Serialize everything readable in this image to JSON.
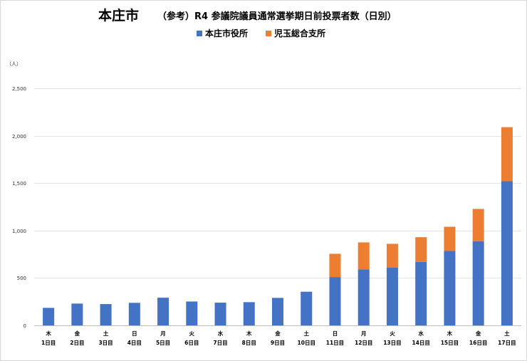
{
  "chart_data": {
    "type": "bar",
    "stacked": true,
    "title_main": "本庄市",
    "title": "（参考）R4 参議院議員通常選挙期日前投票者数（日別）",
    "unit_label": "（人）",
    "legend_position": "top-center",
    "grid": true,
    "ylim": [
      0,
      2500
    ],
    "yticks": [
      0,
      500,
      1000,
      1500,
      2000,
      2500
    ],
    "ytick_labels": [
      "0",
      "500",
      "1,000",
      "1,500",
      "2,000",
      "2,500"
    ],
    "weekdays": [
      "木",
      "金",
      "土",
      "日",
      "月",
      "火",
      "水",
      "木",
      "金",
      "土",
      "日",
      "月",
      "火",
      "水",
      "木",
      "金",
      "土"
    ],
    "categories": [
      "1日目",
      "2日目",
      "3日目",
      "4日目",
      "5日目",
      "6日目",
      "7日目",
      "8日目",
      "9日目",
      "10日目",
      "11日目",
      "12日目",
      "13日目",
      "14日目",
      "15日目",
      "16日目",
      "17日目"
    ],
    "series": [
      {
        "name": "本庄市役所",
        "color": "#4472C4",
        "values": [
          185,
          230,
          225,
          238,
          292,
          252,
          240,
          245,
          290,
          355,
          510,
          590,
          608,
          670,
          785,
          888,
          1520
        ]
      },
      {
        "name": "児玉総合支所",
        "color": "#ED7D31",
        "values": [
          0,
          0,
          0,
          0,
          0,
          0,
          0,
          0,
          0,
          0,
          245,
          285,
          252,
          260,
          255,
          340,
          570
        ]
      }
    ]
  }
}
